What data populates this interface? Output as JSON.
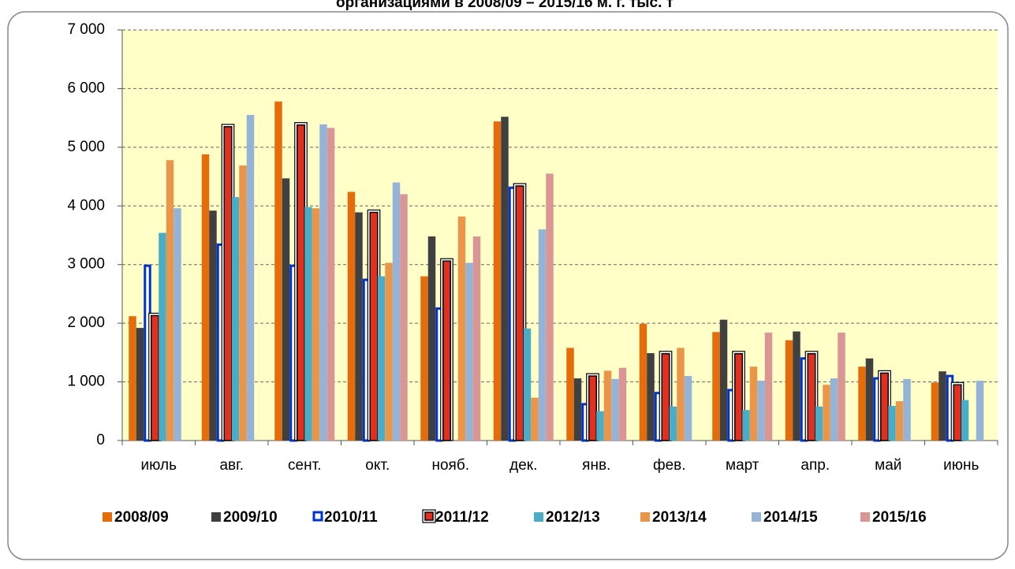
{
  "chart_data": {
    "type": "bar",
    "title": "организациями в 2008/09 – 2015/16 м. г. тыс. т",
    "categories": [
      "июль",
      "авг.",
      "сент.",
      "окт.",
      "нояб.",
      "дек.",
      "янв.",
      "фев.",
      "март",
      "апр.",
      "май",
      "июнь"
    ],
    "series": [
      {
        "name": "2008/09",
        "color": "#e46c0a",
        "values": [
          2120,
          4880,
          5780,
          4240,
          2800,
          5440,
          1580,
          1990,
          1850,
          1710,
          1260,
          990
        ]
      },
      {
        "name": "2009/10",
        "color": "#404040",
        "values": [
          1920,
          3920,
          4470,
          3890,
          3480,
          5520,
          1060,
          1490,
          2060,
          1860,
          1400,
          1180
        ]
      },
      {
        "name": "2010/11",
        "color": "#0033cc",
        "values": [
          3000,
          3360,
          3000,
          2760,
          2270,
          4330,
          640,
          830,
          880,
          1420,
          1080,
          1120
        ]
      },
      {
        "name": "2011/12",
        "color": "#e03020",
        "values": [
          2130,
          5350,
          5380,
          3890,
          3060,
          4340,
          1100,
          1480,
          1480,
          1480,
          1150,
          950
        ]
      },
      {
        "name": "2012/13",
        "color": "#4bacc6",
        "values": [
          3540,
          4150,
          3980,
          2800,
          null,
          1910,
          500,
          580,
          520,
          580,
          590,
          690
        ]
      },
      {
        "name": "2013/14",
        "color": "#e9964a",
        "values": [
          4780,
          4690,
          3960,
          3030,
          3820,
          730,
          1190,
          1580,
          1260,
          950,
          670,
          null
        ]
      },
      {
        "name": "2014/15",
        "color": "#95b3d7",
        "values": [
          3960,
          5550,
          5390,
          4400,
          3030,
          3600,
          1050,
          1100,
          1020,
          1060,
          1050,
          1020
        ]
      },
      {
        "name": "2015/16",
        "color": "#d99694",
        "values": [
          null,
          null,
          5330,
          4200,
          3480,
          4550,
          1240,
          null,
          1840,
          1840,
          null,
          null
        ]
      }
    ],
    "ylim": [
      0,
      7000
    ],
    "yticks": [
      0,
      {
        "value": 1000,
        "label": "1 000"
      },
      {
        "value": 2000,
        "label": "2 000"
      },
      {
        "value": 3000,
        "label": "3 000"
      },
      {
        "value": 4000,
        "label": "4 000"
      },
      {
        "value": 5000,
        "label": "5 000"
      },
      {
        "value": 6000,
        "label": "6 000"
      },
      {
        "value": 7000,
        "label": "7 000"
      }
    ],
    "grid": true,
    "legend": "bottom",
    "plot_background": "#ffffc8"
  }
}
